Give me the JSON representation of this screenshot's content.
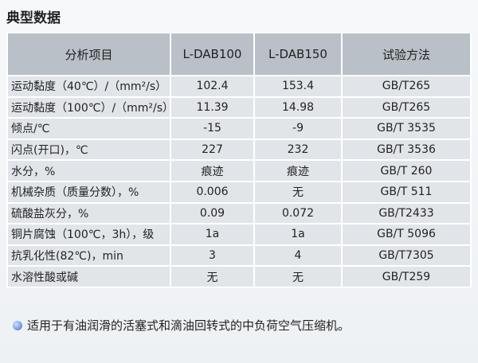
{
  "header": {
    "title": "典型数据"
  },
  "table": {
    "columns": [
      "分析项目",
      "L-DAB100",
      "L-DAB150",
      "试验方法"
    ],
    "rows": [
      [
        "运动黏度（40℃）/（mm²/s）",
        "102.4",
        "153.4",
        "GB/T265"
      ],
      [
        "运动黏度（100℃）/（mm²/s）",
        "11.39",
        "14.98",
        "GB/T265"
      ],
      [
        "倾点/℃",
        "-15",
        "-9",
        "GB/T 3535"
      ],
      [
        "闪点(开口)，℃",
        "227",
        "232",
        "GB/T 3536"
      ],
      [
        "水分，%",
        "痕迹",
        "痕迹",
        "GB/T 260"
      ],
      [
        "机械杂质（质量分数），%",
        "0.006",
        "无",
        "GB/T 511"
      ],
      [
        "硫酸盐灰分，%",
        "0.09",
        "0.072",
        "GB/T2433"
      ],
      [
        "铜片腐蚀（100℃，3h），级",
        "1a",
        "1a",
        "GB/T 5096"
      ],
      [
        "抗乳化性(82℃)，min",
        "3",
        "4",
        "GB/T7305"
      ],
      [
        "水溶性酸或碱",
        "无",
        "无",
        "GB/T259"
      ]
    ]
  },
  "note": "适用于有油润滑的活塞式和滴油回转式的中负荷空气压缩机。"
}
